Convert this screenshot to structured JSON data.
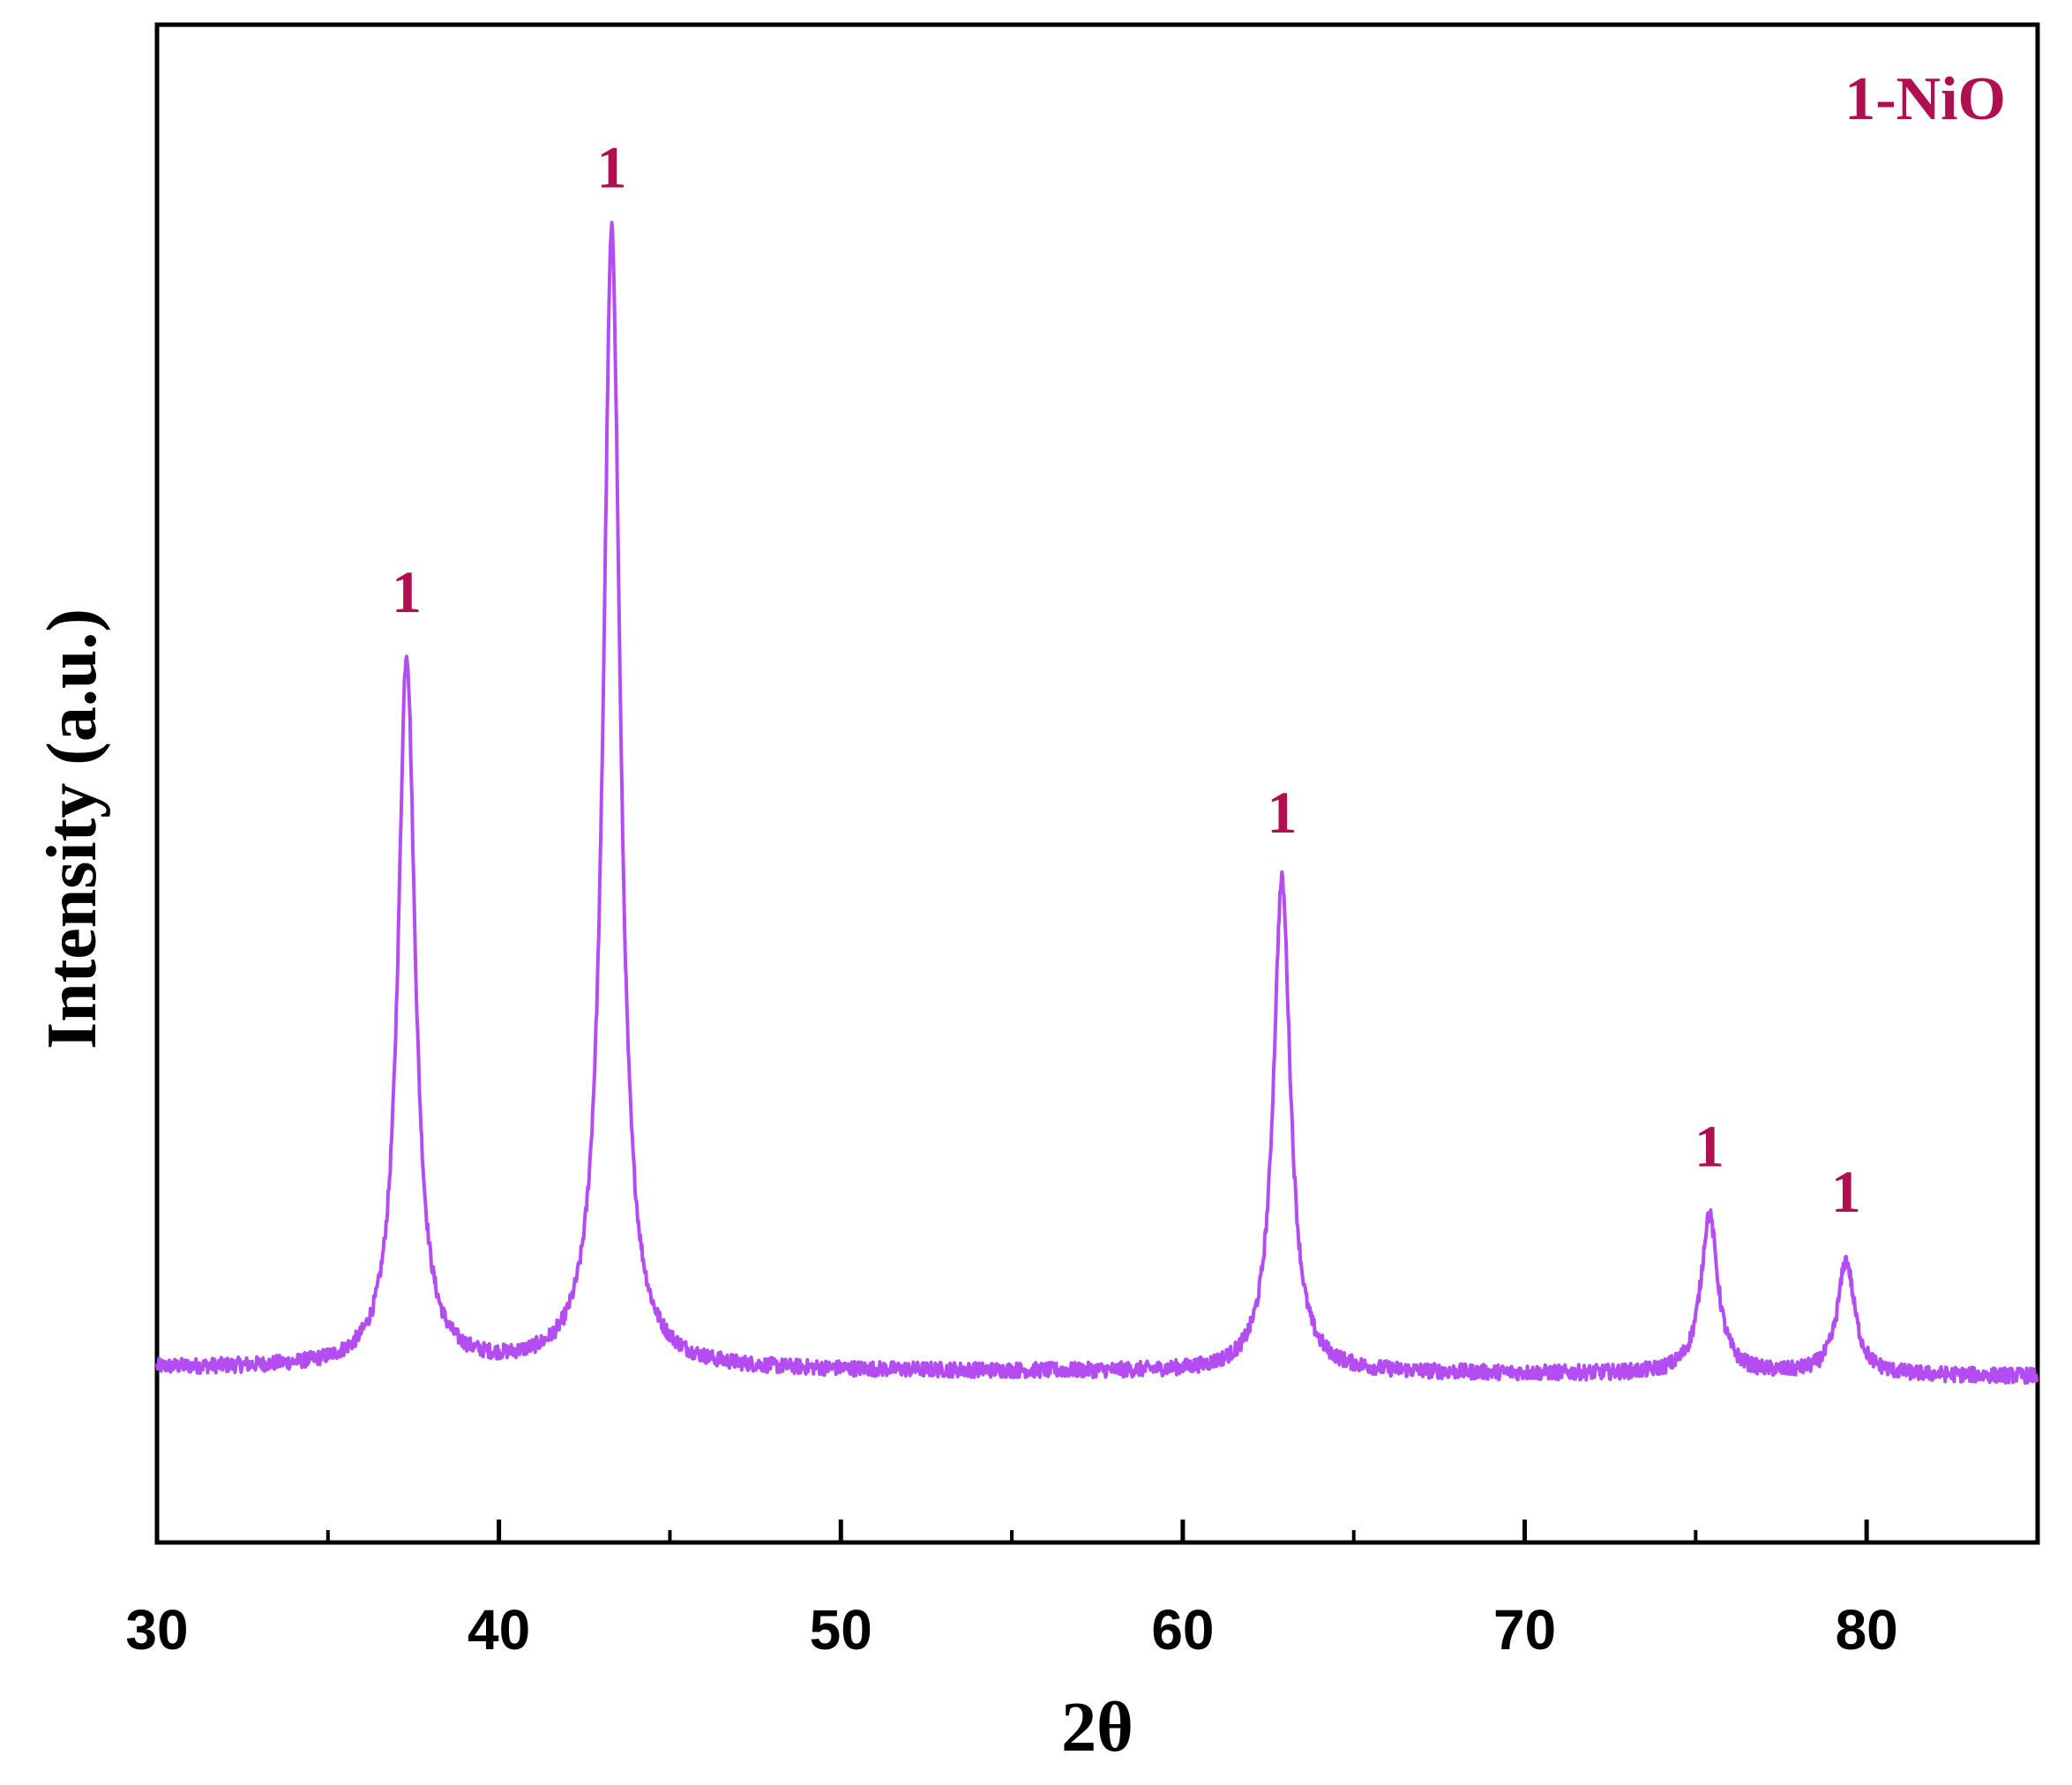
{
  "chart_data": {
    "type": "line",
    "xlabel": "2θ",
    "ylabel": "Intensity (a.u.)",
    "xlim": [
      30,
      85
    ],
    "ylim": [
      0,
      100
    ],
    "x_ticks": [
      30,
      40,
      50,
      60,
      70,
      80
    ],
    "x_minor_ticks": [
      35,
      45,
      55,
      65,
      75,
      85
    ],
    "grid": false,
    "colors": {
      "line": "#b34df2",
      "annotation": "#b0104f",
      "axis": "#000000"
    },
    "series": [
      {
        "name": "1-NiO",
        "baseline": 11.5,
        "peaks": [
          {
            "x": 37.3,
            "intensity": 58.5,
            "label": "1"
          },
          {
            "x": 43.3,
            "intensity": 86.5,
            "label": "1"
          },
          {
            "x": 62.9,
            "intensity": 44.0,
            "label": "1"
          },
          {
            "x": 75.4,
            "intensity": 22.0,
            "label": "1"
          },
          {
            "x": 79.4,
            "intensity": 19.0,
            "label": "1"
          }
        ]
      }
    ],
    "legend": {
      "text": "1-NiO",
      "placement": "top-right"
    }
  }
}
